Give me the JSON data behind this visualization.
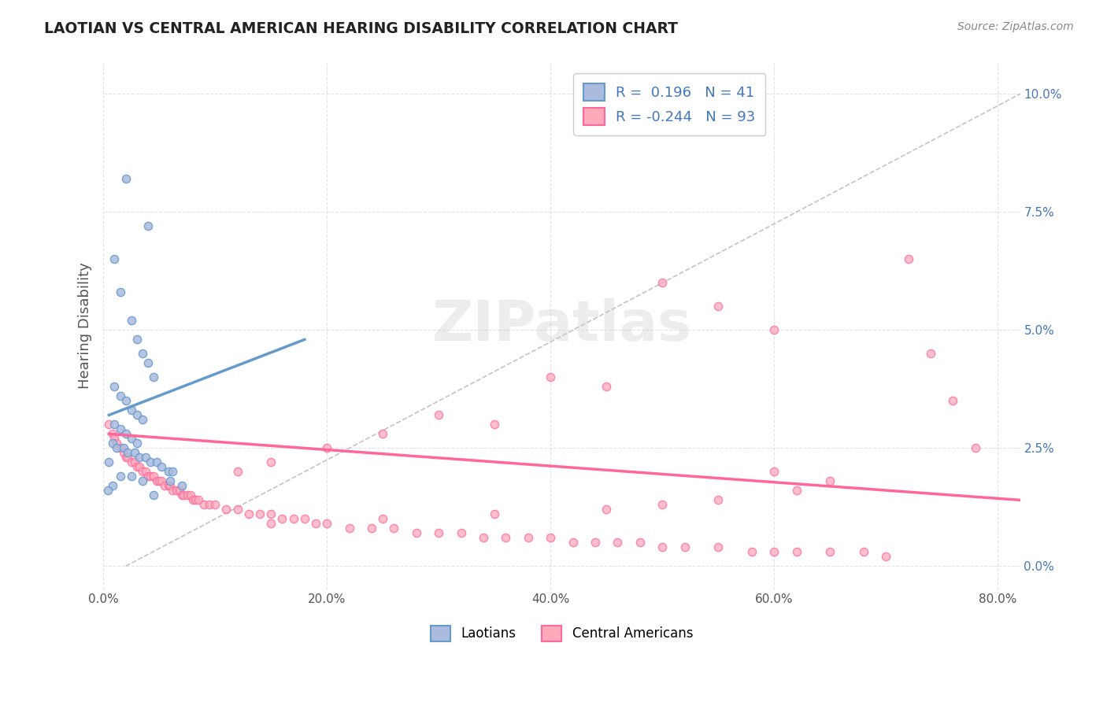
{
  "title": "LAOTIAN VS CENTRAL AMERICAN HEARING DISABILITY CORRELATION CHART",
  "source": "Source: ZipAtlas.com",
  "xlabel_ticks": [
    "0.0%",
    "20.0%",
    "40.0%",
    "60.0%",
    "80.0%"
  ],
  "xlabel_vals": [
    0.0,
    0.2,
    0.4,
    0.6,
    0.8
  ],
  "ylabel_ticks": [
    "0.0%",
    "2.5%",
    "5.0%",
    "7.5%",
    "10.0%"
  ],
  "ylabel_vals": [
    0.0,
    0.025,
    0.05,
    0.075,
    0.1
  ],
  "ylabel_label": "Hearing Disability",
  "xlim": [
    0.0,
    0.82
  ],
  "ylim": [
    -0.005,
    0.107
  ],
  "legend_label1": "Laotians",
  "legend_label2": "Central Americans",
  "R1": "0.196",
  "N1": "41",
  "R2": "-0.244",
  "N2": "93",
  "color_blue": "#6699CC",
  "color_blue_fill": "#AABBDD",
  "color_pink": "#FF6699",
  "color_pink_fill": "#FFAABB",
  "color_blue_text": "#4477BB",
  "blue_scatter_x": [
    0.02,
    0.04,
    0.01,
    0.015,
    0.025,
    0.03,
    0.035,
    0.04,
    0.045,
    0.01,
    0.015,
    0.02,
    0.025,
    0.03,
    0.035,
    0.01,
    0.015,
    0.02,
    0.025,
    0.03,
    0.008,
    0.012,
    0.018,
    0.022,
    0.028,
    0.032,
    0.038,
    0.042,
    0.048,
    0.005,
    0.052,
    0.058,
    0.062,
    0.015,
    0.025,
    0.035,
    0.06,
    0.07,
    0.008,
    0.004,
    0.045
  ],
  "blue_scatter_y": [
    0.082,
    0.072,
    0.065,
    0.058,
    0.052,
    0.048,
    0.045,
    0.043,
    0.04,
    0.038,
    0.036,
    0.035,
    0.033,
    0.032,
    0.031,
    0.03,
    0.029,
    0.028,
    0.027,
    0.026,
    0.026,
    0.025,
    0.025,
    0.024,
    0.024,
    0.023,
    0.023,
    0.022,
    0.022,
    0.022,
    0.021,
    0.02,
    0.02,
    0.019,
    0.019,
    0.018,
    0.018,
    0.017,
    0.017,
    0.016,
    0.015
  ],
  "pink_scatter_x": [
    0.005,
    0.008,
    0.01,
    0.012,
    0.015,
    0.018,
    0.02,
    0.022,
    0.025,
    0.028,
    0.03,
    0.032,
    0.035,
    0.038,
    0.04,
    0.042,
    0.045,
    0.048,
    0.05,
    0.052,
    0.055,
    0.058,
    0.06,
    0.062,
    0.065,
    0.068,
    0.07,
    0.072,
    0.075,
    0.078,
    0.08,
    0.082,
    0.085,
    0.09,
    0.095,
    0.1,
    0.11,
    0.12,
    0.13,
    0.14,
    0.15,
    0.16,
    0.17,
    0.18,
    0.19,
    0.2,
    0.22,
    0.24,
    0.26,
    0.28,
    0.3,
    0.32,
    0.34,
    0.36,
    0.38,
    0.4,
    0.42,
    0.44,
    0.46,
    0.48,
    0.5,
    0.52,
    0.55,
    0.58,
    0.6,
    0.62,
    0.65,
    0.68,
    0.7,
    0.5,
    0.55,
    0.6,
    0.4,
    0.45,
    0.3,
    0.35,
    0.25,
    0.2,
    0.15,
    0.12,
    0.72,
    0.74,
    0.76,
    0.78,
    0.6,
    0.65,
    0.62,
    0.55,
    0.5,
    0.45,
    0.35,
    0.25,
    0.15
  ],
  "pink_scatter_y": [
    0.03,
    0.028,
    0.027,
    0.026,
    0.025,
    0.024,
    0.023,
    0.023,
    0.022,
    0.022,
    0.021,
    0.021,
    0.02,
    0.02,
    0.019,
    0.019,
    0.019,
    0.018,
    0.018,
    0.018,
    0.017,
    0.017,
    0.017,
    0.016,
    0.016,
    0.016,
    0.015,
    0.015,
    0.015,
    0.015,
    0.014,
    0.014,
    0.014,
    0.013,
    0.013,
    0.013,
    0.012,
    0.012,
    0.011,
    0.011,
    0.011,
    0.01,
    0.01,
    0.01,
    0.009,
    0.009,
    0.008,
    0.008,
    0.008,
    0.007,
    0.007,
    0.007,
    0.006,
    0.006,
    0.006,
    0.006,
    0.005,
    0.005,
    0.005,
    0.005,
    0.004,
    0.004,
    0.004,
    0.003,
    0.003,
    0.003,
    0.003,
    0.003,
    0.002,
    0.06,
    0.055,
    0.05,
    0.04,
    0.038,
    0.032,
    0.03,
    0.028,
    0.025,
    0.022,
    0.02,
    0.065,
    0.045,
    0.035,
    0.025,
    0.02,
    0.018,
    0.016,
    0.014,
    0.013,
    0.012,
    0.011,
    0.01,
    0.009
  ],
  "blue_line_x": [
    0.005,
    0.18
  ],
  "blue_line_y": [
    0.032,
    0.048
  ],
  "pink_line_x": [
    0.005,
    0.82
  ],
  "pink_line_y": [
    0.028,
    0.014
  ],
  "diag_line_x": [
    0.02,
    0.82
  ],
  "diag_line_y": [
    0.0,
    0.1
  ],
  "watermark_text": "ZIPatlas",
  "watermark_color": "#CCCCCC",
  "background_color": "#FFFFFF",
  "grid_color": "#DDDDDD"
}
